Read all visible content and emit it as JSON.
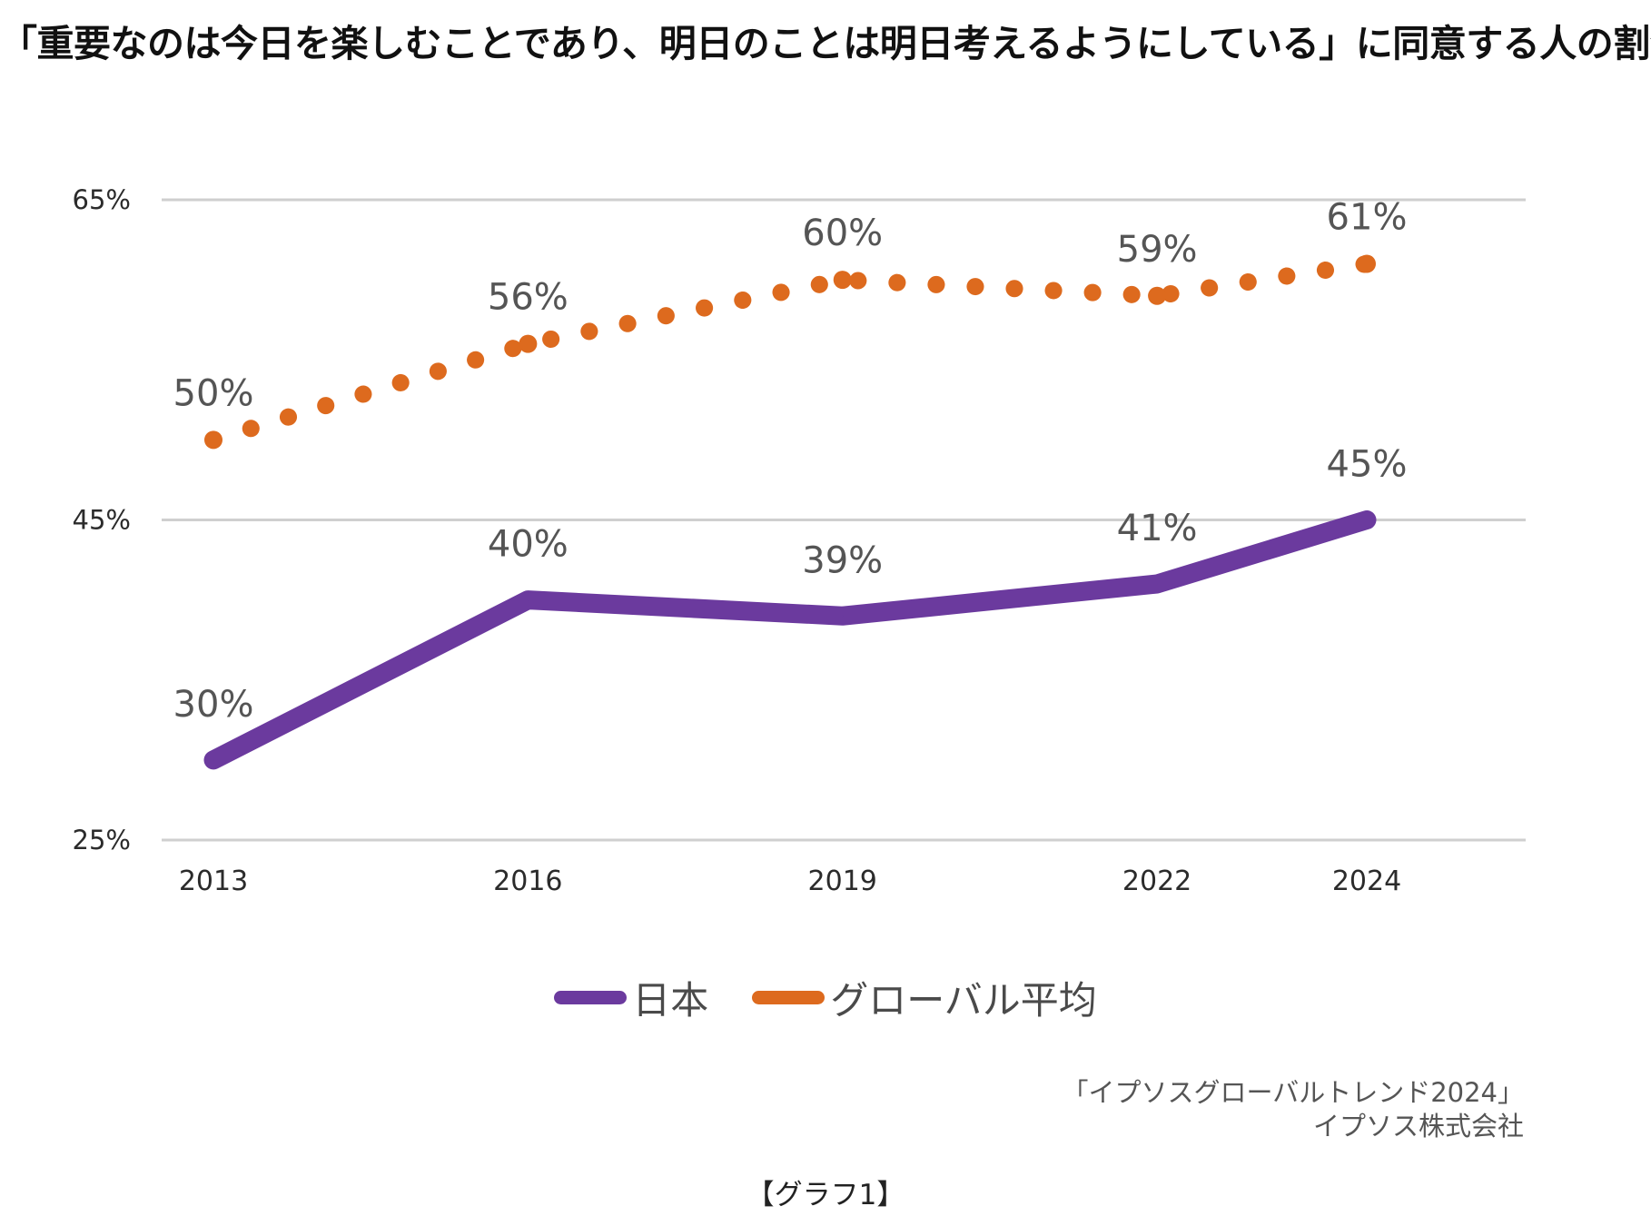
{
  "chart_data": {
    "type": "line",
    "title": "「重要なのは今日を楽しむことであり、明日のことは明日考えるようにしている」に同意する人の割合",
    "xlabel": "",
    "ylabel": "",
    "x": [
      "2013",
      "2016",
      "2019",
      "2022",
      "2024"
    ],
    "x_values": [
      2013,
      2016,
      2019,
      2022,
      2024
    ],
    "ylim": [
      25,
      65
    ],
    "yticks": [
      25,
      45,
      65
    ],
    "ytick_labels": [
      "25%",
      "45%",
      "65%"
    ],
    "grid": true,
    "legend_position": "bottom",
    "series": [
      {
        "name": "日本",
        "values": [
          30,
          40,
          39,
          41,
          45
        ],
        "labels": [
          "30%",
          "40%",
          "39%",
          "41%",
          "45%"
        ],
        "style": "solid",
        "color": "#6b3a9e"
      },
      {
        "name": "グローバル平均",
        "values": [
          50,
          56,
          60,
          59,
          61
        ],
        "labels": [
          "50%",
          "56%",
          "60%",
          "59%",
          "61%"
        ],
        "style": "dotted",
        "color": "#dd6a1e"
      }
    ]
  },
  "source": {
    "line1": "「イプソスグローバルトレンド2024」",
    "line2": "イプソス株式会社"
  },
  "footer": "【グラフ1】"
}
